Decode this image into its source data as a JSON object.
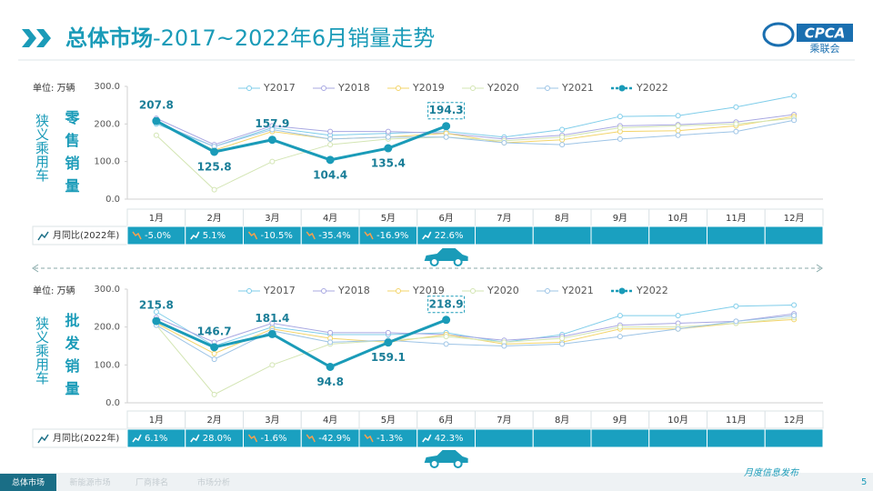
{
  "header": {
    "title_bold": "总体市场",
    "title_rest": "-2017~2022年6月销量走势"
  },
  "logo": {
    "text": "CPCA",
    "subtext": "乘联会"
  },
  "footer": {
    "tabs": [
      "总体市场",
      "新能源市场",
      "厂商排名",
      "市场分析"
    ],
    "note": "月度信息发布",
    "page": "5"
  },
  "chart_data": [
    {
      "type": "line",
      "unit": "单位: 万辆",
      "group_label": "狭义乘用车",
      "side_label": "零售销量",
      "categories": [
        "1月",
        "2月",
        "3月",
        "4月",
        "5月",
        "6月",
        "7月",
        "8月",
        "9月",
        "10月",
        "11月",
        "12月"
      ],
      "ylim": [
        0,
        300
      ],
      "yticks": [
        {
          "value": 0,
          "label": "0.0"
        },
        {
          "value": 100,
          "label": "100.0"
        },
        {
          "value": 200,
          "label": "200.0"
        },
        {
          "value": 300,
          "label": "300.0"
        }
      ],
      "grid": false,
      "series": [
        {
          "name": "Y2017",
          "color": "#7fcdea",
          "values": [
            200,
            140,
            190,
            170,
            175,
            180,
            165,
            185,
            220,
            222,
            245,
            275
          ]
        },
        {
          "name": "Y2018",
          "color": "#a8a8e2",
          "values": [
            215,
            145,
            195,
            180,
            180,
            175,
            160,
            170,
            195,
            198,
            205,
            225
          ]
        },
        {
          "name": "Y2019",
          "color": "#f3d46a",
          "values": [
            205,
            130,
            180,
            160,
            165,
            175,
            150,
            158,
            180,
            182,
            195,
            220
          ]
        },
        {
          "name": "Y2020",
          "color": "#d3e5b3",
          "values": [
            170,
            25,
            100,
            145,
            160,
            165,
            155,
            165,
            190,
            195,
            200,
            215
          ]
        },
        {
          "name": "Y2021",
          "color": "#9dc4e6",
          "values": [
            205,
            140,
            185,
            160,
            165,
            165,
            150,
            145,
            160,
            170,
            180,
            210
          ]
        },
        {
          "name": "Y2022",
          "color": "#1a9bb8",
          "values": [
            207.8,
            125.8,
            157.9,
            104.4,
            135.4,
            194.3,
            null,
            null,
            null,
            null,
            null,
            null
          ]
        }
      ],
      "yoy": {
        "label": "月同比(2022年)",
        "values": [
          -5.0,
          5.1,
          -10.5,
          -35.4,
          -16.9,
          22.6
        ],
        "value_labels": [
          "-5.0%",
          "5.1%",
          "-10.5%",
          "-35.4%",
          "-16.9%",
          "22.6%"
        ]
      }
    },
    {
      "type": "line",
      "unit": "单位: 万辆",
      "group_label": "狭义乘用车",
      "side_label": "批发销量",
      "categories": [
        "1月",
        "2月",
        "3月",
        "4月",
        "5月",
        "6月",
        "7月",
        "8月",
        "9月",
        "10月",
        "11月",
        "12月"
      ],
      "ylim": [
        0,
        300
      ],
      "yticks": [
        {
          "value": 0,
          "label": "0.0"
        },
        {
          "value": 100,
          "label": "100.0"
        },
        {
          "value": 200,
          "label": "200.0"
        },
        {
          "value": 300,
          "label": "300.0"
        }
      ],
      "grid": false,
      "series": [
        {
          "name": "Y2017",
          "color": "#7fcdea",
          "values": [
            240,
            150,
            200,
            180,
            180,
            185,
            160,
            180,
            230,
            230,
            255,
            258
          ]
        },
        {
          "name": "Y2018",
          "color": "#a8a8e2",
          "values": [
            225,
            160,
            210,
            185,
            185,
            180,
            165,
            175,
            205,
            210,
            215,
            235
          ]
        },
        {
          "name": "Y2019",
          "color": "#f3d46a",
          "values": [
            210,
            130,
            195,
            170,
            160,
            180,
            155,
            160,
            195,
            195,
            210,
            220
          ]
        },
        {
          "name": "Y2020",
          "color": "#d3e5b3",
          "values": [
            205,
            22,
            100,
            155,
            165,
            175,
            160,
            170,
            200,
            200,
            210,
            225
          ]
        },
        {
          "name": "Y2021",
          "color": "#9dc4e6",
          "values": [
            205,
            115,
            190,
            160,
            165,
            155,
            150,
            155,
            175,
            195,
            215,
            230
          ]
        },
        {
          "name": "Y2022",
          "color": "#1a9bb8",
          "values": [
            215.8,
            146.7,
            181.4,
            94.8,
            159.1,
            218.9,
            null,
            null,
            null,
            null,
            null,
            null
          ]
        }
      ],
      "yoy": {
        "label": "月同比(2022年)",
        "values": [
          6.1,
          28.0,
          -1.6,
          -42.9,
          -1.3,
          42.3
        ],
        "value_labels": [
          "6.1%",
          "28.0%",
          "-1.6%",
          "-42.9%",
          "-1.3%",
          "42.3%"
        ]
      }
    }
  ]
}
